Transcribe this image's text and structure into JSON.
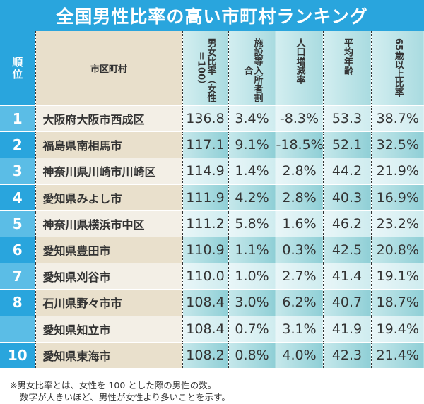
{
  "title": "全国男性比率の高い市町村ランキング",
  "headers": {
    "rank": "順位",
    "name": "市区町村",
    "cols": [
      "男女比率（女性＝100）",
      "施設等入所者割合",
      "人口増減率",
      "平均年齢",
      "65歳以上比率"
    ]
  },
  "rows": [
    {
      "rank": "1",
      "name": "大阪府大阪市西成区",
      "v": [
        "136.8",
        "3.4%",
        "-8.3%",
        "53.3",
        "38.7%"
      ]
    },
    {
      "rank": "2",
      "name": "福島県南相馬市",
      "v": [
        "117.1",
        "9.1%",
        "-18.5%",
        "52.1",
        "32.5%"
      ]
    },
    {
      "rank": "3",
      "name": "神奈川県川崎市川崎区",
      "v": [
        "114.9",
        "1.4%",
        "2.8%",
        "44.2",
        "21.9%"
      ]
    },
    {
      "rank": "4",
      "name": "愛知県みよし市",
      "v": [
        "111.9",
        "4.2%",
        "2.8%",
        "40.3",
        "16.9%"
      ]
    },
    {
      "rank": "5",
      "name": "神奈川県横浜市中区",
      "v": [
        "111.2",
        "5.8%",
        "1.6%",
        "46.2",
        "23.2%"
      ]
    },
    {
      "rank": "6",
      "name": "愛知県豊田市",
      "v": [
        "110.9",
        "1.1%",
        "0.3%",
        "42.5",
        "20.8%"
      ]
    },
    {
      "rank": "7",
      "name": "愛知県刈谷市",
      "v": [
        "110.0",
        "1.0%",
        "2.7%",
        "41.4",
        "19.1%"
      ]
    },
    {
      "rank": "8",
      "name": "石川県野々市市",
      "v": [
        "108.4",
        "3.0%",
        "6.2%",
        "40.7",
        "18.7%"
      ]
    },
    {
      "rank": "",
      "name": "愛知県知立市",
      "v": [
        "108.4",
        "0.7%",
        "3.1%",
        "41.9",
        "19.4%"
      ]
    },
    {
      "rank": "10",
      "name": "愛知県東海市",
      "v": [
        "108.2",
        "0.8%",
        "4.0%",
        "42.3",
        "21.4%"
      ]
    }
  ],
  "note": [
    "※男女比率とは、女性を 100 とした際の男性の数。",
    "数字が大きいほど、男性が女性より多いことを示す。"
  ]
}
